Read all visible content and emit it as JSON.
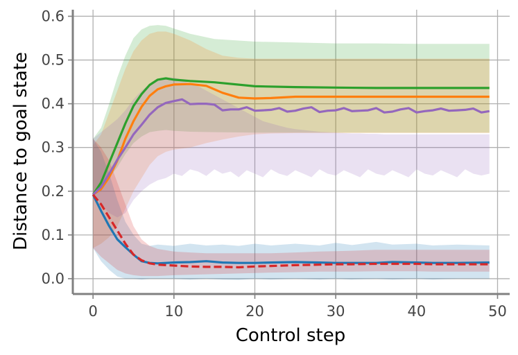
{
  "chart_data": {
    "type": "line",
    "title": "",
    "xlabel": "Control step",
    "ylabel": "Distance to goal state",
    "xlim": [
      -2.5,
      51.5
    ],
    "ylim": [
      -0.035,
      0.615
    ],
    "xticks": [
      0,
      10,
      20,
      30,
      40,
      50
    ],
    "yticks": [
      0.0,
      0.1,
      0.2,
      0.3,
      0.4,
      0.5,
      0.6
    ],
    "xtick_labels": [
      "0",
      "10",
      "20",
      "30",
      "40",
      "50"
    ],
    "ytick_labels": [
      "0.0",
      "0.1",
      "0.2",
      "0.3",
      "0.4",
      "0.5",
      "0.6"
    ],
    "grid": true,
    "legend": "none",
    "series": [
      {
        "color": "#2ca02c",
        "style": "solid",
        "x": [
          0,
          1,
          2,
          3,
          4,
          5,
          6,
          7,
          8,
          9,
          10,
          12,
          15,
          20,
          25,
          30,
          35,
          40,
          45,
          49
        ],
        "y": [
          0.192,
          0.22,
          0.265,
          0.31,
          0.355,
          0.395,
          0.422,
          0.443,
          0.455,
          0.458,
          0.455,
          0.452,
          0.449,
          0.44,
          0.438,
          0.437,
          0.436,
          0.436,
          0.436,
          0.436
        ],
        "lower": [
          0.192,
          0.2,
          0.23,
          0.255,
          0.285,
          0.31,
          0.325,
          0.335,
          0.338,
          0.34,
          0.338,
          0.336,
          0.335,
          0.334,
          0.334,
          0.334,
          0.334,
          0.334,
          0.334,
          0.334
        ],
        "upper": [
          0.32,
          0.345,
          0.4,
          0.46,
          0.51,
          0.55,
          0.57,
          0.578,
          0.58,
          0.578,
          0.572,
          0.56,
          0.548,
          0.542,
          0.54,
          0.538,
          0.538,
          0.537,
          0.537,
          0.537
        ]
      },
      {
        "color": "#ff7f0e",
        "style": "solid",
        "x": [
          0,
          1,
          2,
          3,
          4,
          5,
          6,
          7,
          8,
          9,
          10,
          12,
          14,
          16,
          18,
          20,
          22,
          25,
          30,
          35,
          40,
          45,
          49
        ],
        "y": [
          0.192,
          0.205,
          0.232,
          0.27,
          0.32,
          0.36,
          0.393,
          0.418,
          0.433,
          0.44,
          0.444,
          0.445,
          0.441,
          0.425,
          0.414,
          0.412,
          0.413,
          0.416,
          0.416,
          0.416,
          0.416,
          0.416,
          0.416
        ],
        "lower": [
          0.07,
          0.08,
          0.095,
          0.12,
          0.16,
          0.2,
          0.23,
          0.26,
          0.28,
          0.29,
          0.295,
          0.3,
          0.31,
          0.318,
          0.325,
          0.33,
          0.332,
          0.333,
          0.333,
          0.333,
          0.333,
          0.333,
          0.333
        ],
        "upper": [
          0.305,
          0.33,
          0.38,
          0.43,
          0.48,
          0.52,
          0.545,
          0.56,
          0.565,
          0.565,
          0.56,
          0.545,
          0.525,
          0.51,
          0.505,
          0.503,
          0.503,
          0.503,
          0.503,
          0.503,
          0.503,
          0.503,
          0.503
        ]
      },
      {
        "color": "#9467bd",
        "style": "solid",
        "x": [
          0,
          1,
          2,
          3,
          4,
          5,
          6,
          7,
          8,
          9,
          10,
          11,
          12,
          13,
          14,
          15,
          16,
          17,
          18,
          19,
          20,
          21,
          22,
          23,
          24,
          25,
          26,
          27,
          28,
          29,
          30,
          31,
          32,
          33,
          34,
          35,
          36,
          37,
          38,
          39,
          40,
          41,
          42,
          43,
          44,
          45,
          46,
          47,
          48,
          49
        ],
        "y": [
          0.192,
          0.21,
          0.24,
          0.272,
          0.3,
          0.33,
          0.352,
          0.375,
          0.392,
          0.402,
          0.406,
          0.41,
          0.399,
          0.4,
          0.4,
          0.398,
          0.385,
          0.387,
          0.387,
          0.392,
          0.384,
          0.385,
          0.386,
          0.39,
          0.382,
          0.384,
          0.389,
          0.392,
          0.381,
          0.384,
          0.385,
          0.39,
          0.383,
          0.384,
          0.385,
          0.39,
          0.38,
          0.382,
          0.387,
          0.39,
          0.38,
          0.383,
          0.385,
          0.389,
          0.384,
          0.385,
          0.386,
          0.389,
          0.38,
          0.383
        ],
        "lower": [
          0.192,
          0.17,
          0.15,
          0.14,
          0.15,
          0.18,
          0.2,
          0.215,
          0.225,
          0.23,
          0.24,
          0.235,
          0.25,
          0.245,
          0.235,
          0.25,
          0.24,
          0.245,
          0.232,
          0.248,
          0.24,
          0.232,
          0.25,
          0.24,
          0.235,
          0.248,
          0.24,
          0.232,
          0.25,
          0.24,
          0.236,
          0.248,
          0.24,
          0.232,
          0.25,
          0.24,
          0.236,
          0.248,
          0.24,
          0.232,
          0.25,
          0.24,
          0.236,
          0.248,
          0.24,
          0.232,
          0.25,
          0.24,
          0.236,
          0.24
        ],
        "upper": [
          0.32,
          0.335,
          0.35,
          0.365,
          0.385,
          0.41,
          0.43,
          0.445,
          0.455,
          0.46,
          0.46,
          0.455,
          0.445,
          0.44,
          0.43,
          0.42,
          0.41,
          0.4,
          0.39,
          0.38,
          0.37,
          0.36,
          0.355,
          0.35,
          0.345,
          0.342,
          0.34,
          0.338,
          0.336,
          0.335,
          0.334,
          0.333,
          0.332,
          0.332,
          0.331,
          0.331,
          0.33,
          0.33,
          0.33,
          0.33,
          0.33,
          0.33,
          0.33,
          0.33,
          0.33,
          0.33,
          0.33,
          0.33,
          0.33,
          0.33
        ]
      },
      {
        "color": "#1f77b4",
        "style": "solid",
        "x": [
          0,
          1,
          2,
          3,
          4,
          5,
          6,
          7,
          8,
          10,
          12,
          14,
          16,
          18,
          20,
          22,
          25,
          28,
          30,
          32,
          35,
          37,
          40,
          42,
          45,
          49
        ],
        "y": [
          0.192,
          0.155,
          0.12,
          0.09,
          0.072,
          0.055,
          0.04,
          0.036,
          0.035,
          0.037,
          0.038,
          0.04,
          0.037,
          0.036,
          0.036,
          0.037,
          0.038,
          0.037,
          0.036,
          0.036,
          0.036,
          0.038,
          0.037,
          0.036,
          0.036,
          0.037
        ],
        "lower": [
          0.07,
          0.04,
          0.02,
          0.005,
          0.0,
          0.0,
          -0.002,
          0.0,
          0.0,
          0.0,
          -0.002,
          0.0,
          -0.002,
          -0.003,
          0.0,
          -0.002,
          0.0,
          -0.002,
          0.0,
          -0.002,
          0.0,
          -0.002,
          0.0,
          -0.002,
          0.0,
          0.0
        ],
        "upper": [
          0.32,
          0.29,
          0.24,
          0.18,
          0.13,
          0.1,
          0.08,
          0.075,
          0.078,
          0.075,
          0.08,
          0.076,
          0.078,
          0.075,
          0.08,
          0.076,
          0.08,
          0.076,
          0.082,
          0.077,
          0.084,
          0.078,
          0.08,
          0.076,
          0.078,
          0.076
        ]
      },
      {
        "color": "#d62728",
        "style": "dashed",
        "x": [
          0,
          1,
          2,
          3,
          4,
          5,
          6,
          7,
          8,
          10,
          12,
          14,
          16,
          18,
          20,
          22,
          25,
          28,
          30,
          32,
          35,
          37,
          40,
          42,
          45,
          49
        ],
        "y": [
          0.192,
          0.17,
          0.14,
          0.11,
          0.08,
          0.055,
          0.042,
          0.035,
          0.032,
          0.03,
          0.028,
          0.027,
          0.027,
          0.026,
          0.028,
          0.029,
          0.031,
          0.032,
          0.033,
          0.033,
          0.034,
          0.034,
          0.034,
          0.033,
          0.033,
          0.033
        ],
        "lower": [
          0.07,
          0.05,
          0.035,
          0.02,
          0.012,
          0.008,
          0.006,
          0.006,
          0.006,
          0.008,
          0.009,
          0.01,
          0.011,
          0.012,
          0.013,
          0.014,
          0.015,
          0.016,
          0.016,
          0.016,
          0.017,
          0.017,
          0.017,
          0.016,
          0.016,
          0.016
        ],
        "upper": [
          0.32,
          0.3,
          0.27,
          0.22,
          0.17,
          0.12,
          0.09,
          0.075,
          0.068,
          0.062,
          0.06,
          0.058,
          0.058,
          0.058,
          0.058,
          0.058,
          0.06,
          0.062,
          0.063,
          0.064,
          0.066,
          0.066,
          0.066,
          0.066,
          0.066,
          0.066
        ]
      }
    ]
  }
}
